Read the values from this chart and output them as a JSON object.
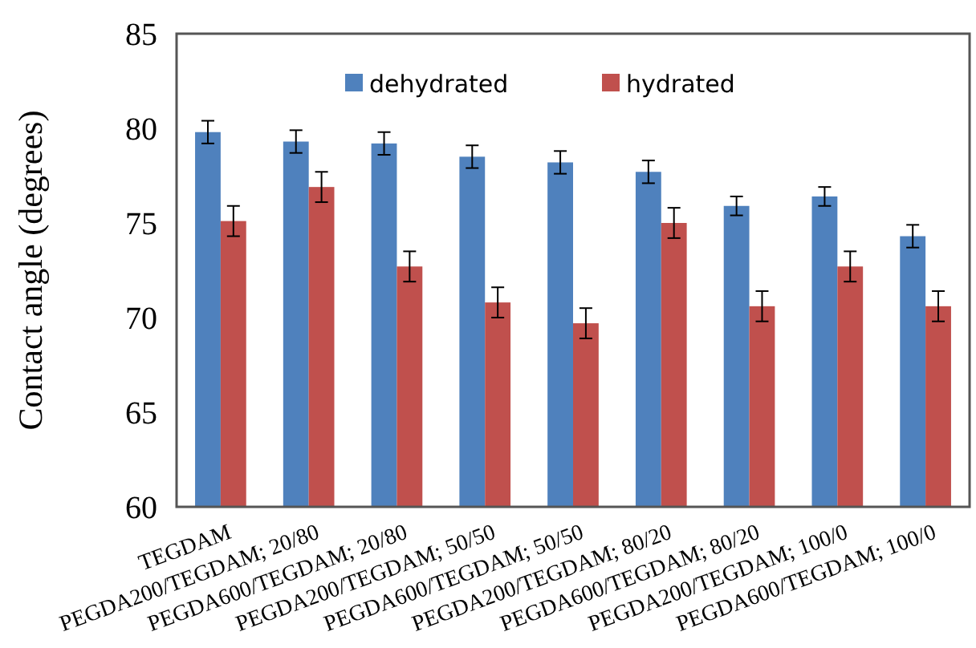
{
  "chart_data": {
    "type": "bar",
    "ylabel": "Contact angle (degrees)",
    "categories": [
      "TEGDAM",
      "PEGDA200/TEGDAM; 20/80",
      "PEGDA600/TEGDAM; 20/80",
      "PEGDA200/TEGDAM; 50/50",
      "PEGDA600/TEGDAM; 50/50",
      "PEGDA200/TEGDAM; 80/20",
      "PEGDA600/TEGDAM; 80/20",
      "PEGDA200/TEGDAM; 100/0",
      "PEGDA600/TEGDAM; 100/0"
    ],
    "series": [
      {
        "name": "dehydrated",
        "color": "#4f81bd",
        "values": [
          79.8,
          79.3,
          79.2,
          78.5,
          78.2,
          77.7,
          75.9,
          76.4,
          74.3
        ],
        "errors": [
          0.6,
          0.6,
          0.6,
          0.6,
          0.6,
          0.6,
          0.5,
          0.5,
          0.6
        ]
      },
      {
        "name": "hydrated",
        "color": "#c0504d",
        "values": [
          75.1,
          76.9,
          72.7,
          70.8,
          69.7,
          75.0,
          70.6,
          72.7,
          70.6
        ],
        "errors": [
          0.8,
          0.8,
          0.8,
          0.8,
          0.8,
          0.8,
          0.8,
          0.8,
          0.8
        ]
      }
    ],
    "ylim": [
      60,
      85
    ],
    "yticks": [
      60,
      65,
      70,
      75,
      80,
      85
    ],
    "grid": false,
    "legend": "top"
  }
}
